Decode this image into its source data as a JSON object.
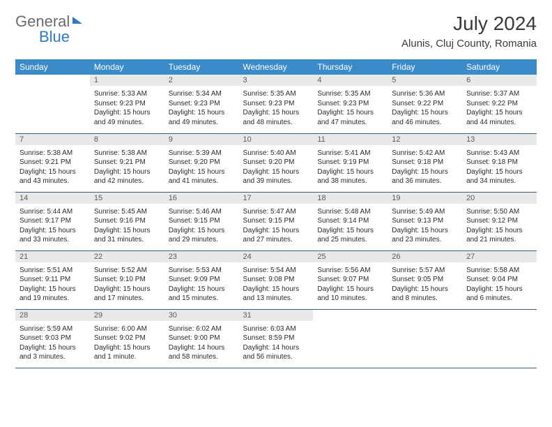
{
  "brand": {
    "part1": "General",
    "part2": "Blue"
  },
  "title": "July 2024",
  "location": "Alunis, Cluj County, Romania",
  "colors": {
    "header_bg": "#3b8bc9",
    "header_fg": "#ffffff",
    "daynum_bg": "#e9e9e9",
    "daynum_fg": "#5a5a5a",
    "rule": "#3b5f84",
    "text": "#2a2a2a",
    "brand_gray": "#6b6b6b",
    "brand_blue": "#2f7ac0"
  },
  "weekdays": [
    "Sunday",
    "Monday",
    "Tuesday",
    "Wednesday",
    "Thursday",
    "Friday",
    "Saturday"
  ],
  "weeks": [
    [
      null,
      {
        "n": "1",
        "sr": "Sunrise: 5:33 AM",
        "ss": "Sunset: 9:23 PM",
        "d1": "Daylight: 15 hours",
        "d2": "and 49 minutes."
      },
      {
        "n": "2",
        "sr": "Sunrise: 5:34 AM",
        "ss": "Sunset: 9:23 PM",
        "d1": "Daylight: 15 hours",
        "d2": "and 49 minutes."
      },
      {
        "n": "3",
        "sr": "Sunrise: 5:35 AM",
        "ss": "Sunset: 9:23 PM",
        "d1": "Daylight: 15 hours",
        "d2": "and 48 minutes."
      },
      {
        "n": "4",
        "sr": "Sunrise: 5:35 AM",
        "ss": "Sunset: 9:23 PM",
        "d1": "Daylight: 15 hours",
        "d2": "and 47 minutes."
      },
      {
        "n": "5",
        "sr": "Sunrise: 5:36 AM",
        "ss": "Sunset: 9:22 PM",
        "d1": "Daylight: 15 hours",
        "d2": "and 46 minutes."
      },
      {
        "n": "6",
        "sr": "Sunrise: 5:37 AM",
        "ss": "Sunset: 9:22 PM",
        "d1": "Daylight: 15 hours",
        "d2": "and 44 minutes."
      }
    ],
    [
      {
        "n": "7",
        "sr": "Sunrise: 5:38 AM",
        "ss": "Sunset: 9:21 PM",
        "d1": "Daylight: 15 hours",
        "d2": "and 43 minutes."
      },
      {
        "n": "8",
        "sr": "Sunrise: 5:38 AM",
        "ss": "Sunset: 9:21 PM",
        "d1": "Daylight: 15 hours",
        "d2": "and 42 minutes."
      },
      {
        "n": "9",
        "sr": "Sunrise: 5:39 AM",
        "ss": "Sunset: 9:20 PM",
        "d1": "Daylight: 15 hours",
        "d2": "and 41 minutes."
      },
      {
        "n": "10",
        "sr": "Sunrise: 5:40 AM",
        "ss": "Sunset: 9:20 PM",
        "d1": "Daylight: 15 hours",
        "d2": "and 39 minutes."
      },
      {
        "n": "11",
        "sr": "Sunrise: 5:41 AM",
        "ss": "Sunset: 9:19 PM",
        "d1": "Daylight: 15 hours",
        "d2": "and 38 minutes."
      },
      {
        "n": "12",
        "sr": "Sunrise: 5:42 AM",
        "ss": "Sunset: 9:18 PM",
        "d1": "Daylight: 15 hours",
        "d2": "and 36 minutes."
      },
      {
        "n": "13",
        "sr": "Sunrise: 5:43 AM",
        "ss": "Sunset: 9:18 PM",
        "d1": "Daylight: 15 hours",
        "d2": "and 34 minutes."
      }
    ],
    [
      {
        "n": "14",
        "sr": "Sunrise: 5:44 AM",
        "ss": "Sunset: 9:17 PM",
        "d1": "Daylight: 15 hours",
        "d2": "and 33 minutes."
      },
      {
        "n": "15",
        "sr": "Sunrise: 5:45 AM",
        "ss": "Sunset: 9:16 PM",
        "d1": "Daylight: 15 hours",
        "d2": "and 31 minutes."
      },
      {
        "n": "16",
        "sr": "Sunrise: 5:46 AM",
        "ss": "Sunset: 9:15 PM",
        "d1": "Daylight: 15 hours",
        "d2": "and 29 minutes."
      },
      {
        "n": "17",
        "sr": "Sunrise: 5:47 AM",
        "ss": "Sunset: 9:15 PM",
        "d1": "Daylight: 15 hours",
        "d2": "and 27 minutes."
      },
      {
        "n": "18",
        "sr": "Sunrise: 5:48 AM",
        "ss": "Sunset: 9:14 PM",
        "d1": "Daylight: 15 hours",
        "d2": "and 25 minutes."
      },
      {
        "n": "19",
        "sr": "Sunrise: 5:49 AM",
        "ss": "Sunset: 9:13 PM",
        "d1": "Daylight: 15 hours",
        "d2": "and 23 minutes."
      },
      {
        "n": "20",
        "sr": "Sunrise: 5:50 AM",
        "ss": "Sunset: 9:12 PM",
        "d1": "Daylight: 15 hours",
        "d2": "and 21 minutes."
      }
    ],
    [
      {
        "n": "21",
        "sr": "Sunrise: 5:51 AM",
        "ss": "Sunset: 9:11 PM",
        "d1": "Daylight: 15 hours",
        "d2": "and 19 minutes."
      },
      {
        "n": "22",
        "sr": "Sunrise: 5:52 AM",
        "ss": "Sunset: 9:10 PM",
        "d1": "Daylight: 15 hours",
        "d2": "and 17 minutes."
      },
      {
        "n": "23",
        "sr": "Sunrise: 5:53 AM",
        "ss": "Sunset: 9:09 PM",
        "d1": "Daylight: 15 hours",
        "d2": "and 15 minutes."
      },
      {
        "n": "24",
        "sr": "Sunrise: 5:54 AM",
        "ss": "Sunset: 9:08 PM",
        "d1": "Daylight: 15 hours",
        "d2": "and 13 minutes."
      },
      {
        "n": "25",
        "sr": "Sunrise: 5:56 AM",
        "ss": "Sunset: 9:07 PM",
        "d1": "Daylight: 15 hours",
        "d2": "and 10 minutes."
      },
      {
        "n": "26",
        "sr": "Sunrise: 5:57 AM",
        "ss": "Sunset: 9:05 PM",
        "d1": "Daylight: 15 hours",
        "d2": "and 8 minutes."
      },
      {
        "n": "27",
        "sr": "Sunrise: 5:58 AM",
        "ss": "Sunset: 9:04 PM",
        "d1": "Daylight: 15 hours",
        "d2": "and 6 minutes."
      }
    ],
    [
      {
        "n": "28",
        "sr": "Sunrise: 5:59 AM",
        "ss": "Sunset: 9:03 PM",
        "d1": "Daylight: 15 hours",
        "d2": "and 3 minutes."
      },
      {
        "n": "29",
        "sr": "Sunrise: 6:00 AM",
        "ss": "Sunset: 9:02 PM",
        "d1": "Daylight: 15 hours",
        "d2": "and 1 minute."
      },
      {
        "n": "30",
        "sr": "Sunrise: 6:02 AM",
        "ss": "Sunset: 9:00 PM",
        "d1": "Daylight: 14 hours",
        "d2": "and 58 minutes."
      },
      {
        "n": "31",
        "sr": "Sunrise: 6:03 AM",
        "ss": "Sunset: 8:59 PM",
        "d1": "Daylight: 14 hours",
        "d2": "and 56 minutes."
      },
      null,
      null,
      null
    ]
  ]
}
